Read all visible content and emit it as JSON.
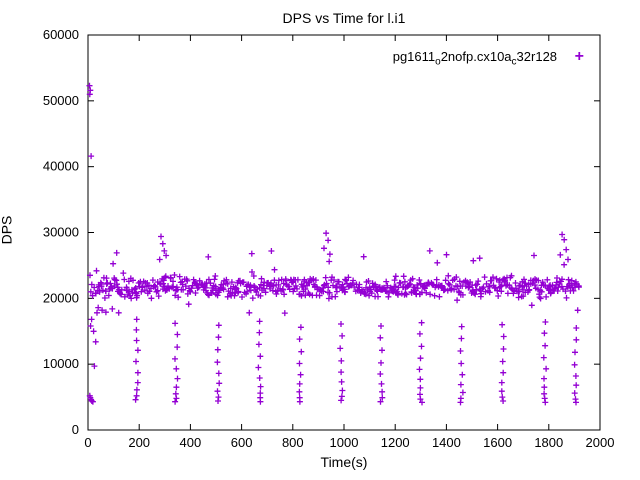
{
  "chart_data": {
    "type": "scatter",
    "title": "DPS vs Time for l.i1",
    "xlabel": "Time(s)",
    "ylabel": "DPS",
    "xlim": [
      0,
      2000
    ],
    "ylim": [
      0,
      60000
    ],
    "xticks": [
      0,
      200,
      400,
      600,
      800,
      1000,
      1200,
      1400,
      1600,
      1800,
      2000
    ],
    "yticks": [
      0,
      10000,
      20000,
      30000,
      40000,
      50000,
      60000
    ],
    "grid": false,
    "legend": "pg1611_o2nofp.cx10a_c32r128",
    "legend_position": "top-right-inside",
    "legend_parts": [
      {
        "text": "pg1611"
      },
      {
        "text": "o",
        "sub": true
      },
      {
        "text": "2nofp.cx10a"
      },
      {
        "text": "c",
        "sub": true
      },
      {
        "text": "32r128"
      }
    ],
    "marker": {
      "glyph": "+",
      "color": "#9400d3",
      "name": "plus-marker"
    },
    "startup_points": [
      [
        6,
        52300
      ],
      [
        9,
        51600
      ],
      [
        7,
        51000
      ],
      [
        12,
        41600
      ],
      [
        8,
        23500
      ],
      [
        15,
        22100
      ],
      [
        11,
        21000
      ],
      [
        18,
        20400
      ],
      [
        14,
        16800
      ],
      [
        10,
        15800
      ],
      [
        22,
        15000
      ],
      [
        7,
        5200
      ],
      [
        9,
        4900
      ],
      [
        12,
        4600
      ],
      [
        15,
        4400
      ],
      [
        19,
        4300
      ],
      [
        25,
        9700
      ],
      [
        30,
        13400
      ],
      [
        35,
        17800
      ],
      [
        40,
        18600
      ],
      [
        55,
        18200
      ],
      [
        70,
        17900
      ],
      [
        95,
        18400
      ],
      [
        120,
        17800
      ]
    ],
    "high_outlier_points": [
      [
        285,
        29400
      ],
      [
        292,
        28300
      ],
      [
        298,
        27200
      ],
      [
        305,
        26500
      ],
      [
        280,
        25900
      ],
      [
        930,
        29900
      ],
      [
        938,
        28800
      ],
      [
        922,
        27600
      ],
      [
        945,
        26700
      ],
      [
        1852,
        29700
      ],
      [
        1860,
        28900
      ],
      [
        1868,
        27400
      ],
      [
        1845,
        26600
      ],
      [
        1875,
        25900
      ],
      [
        112,
        26900
      ],
      [
        640,
        26800
      ],
      [
        1335,
        27200
      ],
      [
        1742,
        26500
      ],
      [
        470,
        26300
      ],
      [
        1530,
        26100
      ]
    ],
    "dip_streaks": [
      {
        "x": 190,
        "ys": [
          16800,
          15200,
          13600,
          12100,
          10400,
          8700,
          7200,
          6100,
          5200,
          4600
        ]
      },
      {
        "x": 345,
        "ys": [
          16200,
          14500,
          12600,
          10800,
          9300,
          7800,
          6500,
          5500,
          4800,
          4300
        ]
      },
      {
        "x": 510,
        "ys": [
          15900,
          14100,
          12200,
          10300,
          8600,
          7100,
          5900,
          5000,
          4400
        ]
      },
      {
        "x": 670,
        "ys": [
          16500,
          14800,
          13000,
          11200,
          9500,
          7900,
          6600,
          5600,
          4900,
          4300
        ]
      },
      {
        "x": 830,
        "ys": [
          15600,
          13800,
          11900,
          10100,
          8400,
          7000,
          5800,
          4900,
          4300
        ]
      },
      {
        "x": 990,
        "ys": [
          16100,
          14300,
          12400,
          10500,
          8800,
          7300,
          6000,
          5100,
          4500
        ]
      },
      {
        "x": 1145,
        "ys": [
          15800,
          14000,
          12100,
          10200,
          8500,
          7000,
          5800,
          4900,
          4300
        ]
      },
      {
        "x": 1300,
        "ys": [
          16300,
          14600,
          12700,
          10900,
          9200,
          7700,
          6400,
          5400,
          4700,
          4200
        ]
      },
      {
        "x": 1460,
        "ys": [
          15700,
          13900,
          12000,
          10100,
          8400,
          6900,
          5700,
          4800,
          4200
        ]
      },
      {
        "x": 1620,
        "ys": [
          16000,
          14200,
          12300,
          10400,
          8700,
          7200,
          5900,
          5000,
          4400
        ]
      },
      {
        "x": 1785,
        "ys": [
          16400,
          14700,
          12800,
          11000,
          9300,
          7800,
          6500,
          5500,
          4800,
          4200
        ]
      },
      {
        "x": 1905,
        "ys": [
          15500,
          13700,
          11800,
          9900,
          8200,
          6800,
          5600,
          4700,
          4200
        ]
      }
    ],
    "baseline": {
      "description": "dense steady-state band of per-interval DPS samples",
      "x_start": 25,
      "x_end": 1918,
      "step": 4,
      "mean": 21700,
      "jitter": 1900,
      "upper_tail_chance": 0.05,
      "upper_tail_extra": 4500,
      "lower_tail_chance": 0.04,
      "lower_tail_extra": 3000,
      "seed": 20240101
    }
  }
}
